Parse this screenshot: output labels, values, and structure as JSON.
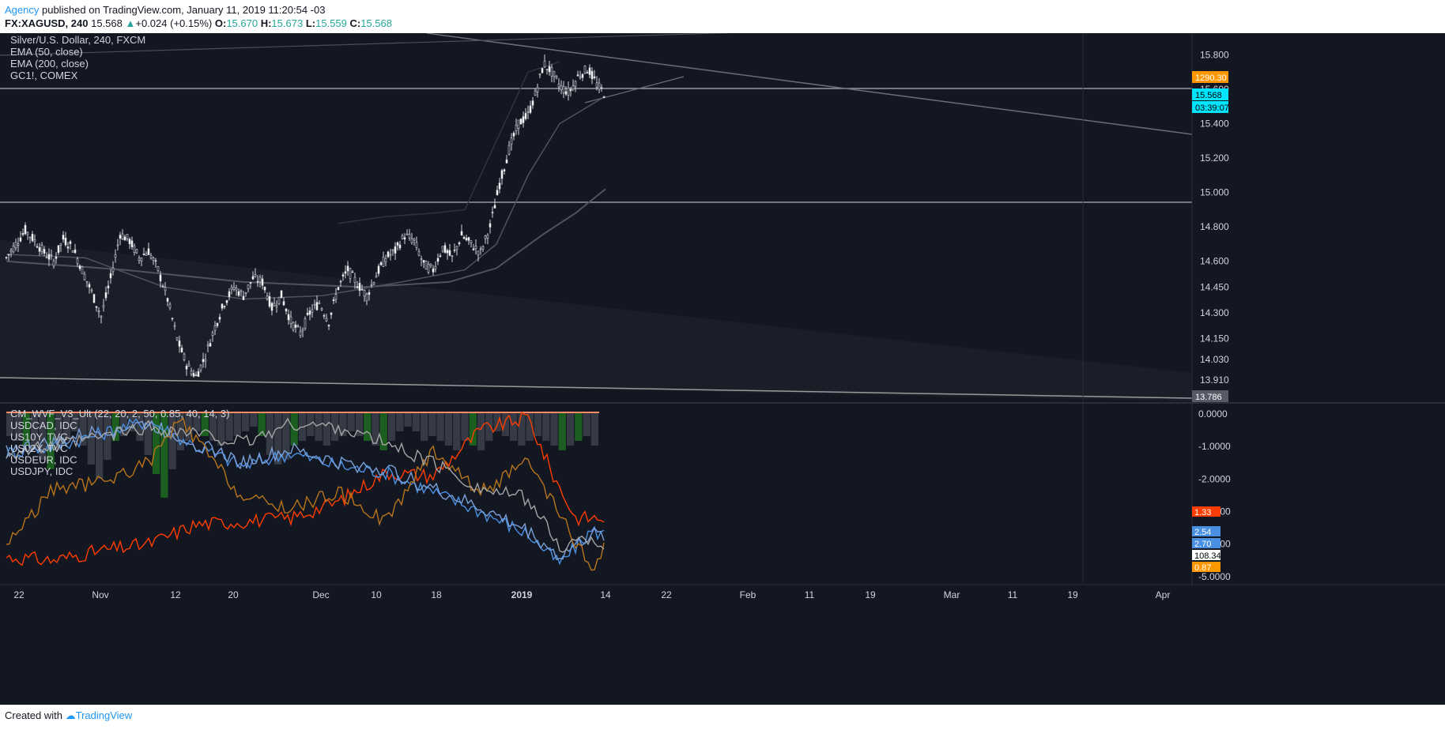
{
  "header": {
    "author": "Agency",
    "published_text": " published on TradingView.com, January 11, 2019 11:20:54 -03",
    "symbol": "FX:XAGUSD, 240",
    "last": "15.568",
    "change": "+0.024 (+0.15%)",
    "o_label": "O:",
    "o_value": "15.670",
    "h_label": "H:",
    "h_value": "15.673",
    "l_label": "L:",
    "l_value": "15.559",
    "c_label": "C:",
    "c_value": "15.568"
  },
  "footer": {
    "created_with": "Created with",
    "brand": "TradingView"
  },
  "colors": {
    "background": "#131722",
    "candle": "#d1d4dc",
    "accent_cyan": "#00e5ff",
    "orange": "#ff9800",
    "red_orange": "#ff3d00",
    "blue": "#4a90e2",
    "brown": "#b8741a",
    "grey_line": "#a5a5a5",
    "green_hist": "#1b5e20",
    "gray_hist": "#363a45"
  },
  "chart_data": [
    {
      "type": "candlestick",
      "title": "Silver/U.S. Dollar, 240, FXCM",
      "legend": [
        "EMA (50, close)",
        "EMA (200, close)",
        "GC1!, COMEX"
      ],
      "y_ticks": [
        "15.800",
        "15.600",
        "15.400",
        "15.200",
        "15.000",
        "14.800",
        "14.600",
        "14.450",
        "14.300",
        "14.150",
        "14.030",
        "13.910"
      ],
      "ylim": [
        13.786,
        15.88
      ],
      "badges": [
        {
          "text": "1290.30",
          "color": "#ff9800"
        },
        {
          "text": "15.568",
          "color": "#00e5ff"
        },
        {
          "text": "03:39:07",
          "color": "#00e5ff"
        },
        {
          "text": "13.786",
          "color": "#555a66"
        }
      ],
      "series_points": [
        [
          0,
          14.62
        ],
        [
          12,
          14.7
        ],
        [
          24,
          14.78
        ],
        [
          36,
          14.72
        ],
        [
          48,
          14.65
        ],
        [
          60,
          14.6
        ],
        [
          72,
          14.73
        ],
        [
          84,
          14.68
        ],
        [
          96,
          14.55
        ],
        [
          108,
          14.42
        ],
        [
          120,
          14.28
        ],
        [
          132,
          14.5
        ],
        [
          144,
          14.76
        ],
        [
          156,
          14.72
        ],
        [
          168,
          14.62
        ],
        [
          180,
          14.66
        ],
        [
          192,
          14.55
        ],
        [
          204,
          14.38
        ],
        [
          216,
          14.15
        ],
        [
          228,
          14.0
        ],
        [
          240,
          13.93
        ],
        [
          252,
          14.05
        ],
        [
          264,
          14.22
        ],
        [
          276,
          14.36
        ],
        [
          288,
          14.45
        ],
        [
          300,
          14.4
        ],
        [
          312,
          14.5
        ],
        [
          324,
          14.48
        ],
        [
          336,
          14.33
        ],
        [
          348,
          14.4
        ],
        [
          360,
          14.25
        ],
        [
          372,
          14.18
        ],
        [
          384,
          14.3
        ],
        [
          396,
          14.36
        ],
        [
          408,
          14.25
        ],
        [
          420,
          14.45
        ],
        [
          432,
          14.55
        ],
        [
          444,
          14.47
        ],
        [
          456,
          14.4
        ],
        [
          468,
          14.52
        ],
        [
          480,
          14.62
        ],
        [
          492,
          14.66
        ],
        [
          504,
          14.75
        ],
        [
          516,
          14.72
        ],
        [
          528,
          14.58
        ],
        [
          540,
          14.55
        ],
        [
          552,
          14.68
        ],
        [
          564,
          14.62
        ],
        [
          576,
          14.75
        ],
        [
          588,
          14.7
        ],
        [
          600,
          14.65
        ],
        [
          612,
          14.8
        ],
        [
          624,
          15.05
        ],
        [
          636,
          15.25
        ],
        [
          648,
          15.4
        ],
        [
          660,
          15.45
        ],
        [
          670,
          15.58
        ],
        [
          680,
          15.75
        ],
        [
          690,
          15.7
        ],
        [
          700,
          15.62
        ],
        [
          712,
          15.58
        ],
        [
          724,
          15.68
        ],
        [
          736,
          15.72
        ],
        [
          748,
          15.62
        ],
        [
          758,
          15.568
        ]
      ],
      "ema50_points": [
        [
          0,
          14.64
        ],
        [
          100,
          14.62
        ],
        [
          200,
          14.45
        ],
        [
          300,
          14.38
        ],
        [
          400,
          14.4
        ],
        [
          500,
          14.48
        ],
        [
          580,
          14.55
        ],
        [
          620,
          14.7
        ],
        [
          660,
          15.1
        ],
        [
          700,
          15.4
        ],
        [
          758,
          15.56
        ]
      ],
      "ema200_points": [
        [
          0,
          14.6
        ],
        [
          150,
          14.55
        ],
        [
          300,
          14.48
        ],
        [
          450,
          14.45
        ],
        [
          560,
          14.48
        ],
        [
          620,
          14.56
        ],
        [
          680,
          14.76
        ],
        [
          720,
          14.88
        ],
        [
          758,
          15.02
        ]
      ],
      "gc_points": [
        [
          420,
          14.82
        ],
        [
          480,
          14.86
        ],
        [
          540,
          14.88
        ],
        [
          580,
          14.9
        ],
        [
          620,
          15.3
        ],
        [
          660,
          15.7
        ],
        [
          700,
          15.76
        ]
      ]
    },
    {
      "type": "line",
      "title": "CM_WVF_V3_Ult (22, 20, 2, 50, 0.85, 40, 14, 3)",
      "legend": [
        "USDCAD, IDC",
        "US10Y, TVC",
        "US02Y, TVC",
        "USDEUR, IDC",
        "USDJPY, IDC"
      ],
      "y_ticks": [
        "0.0000",
        "-1.0000",
        "-2.0000",
        "-3.0000",
        "-4.0000",
        "-5.0000"
      ],
      "ylim": [
        -5.2,
        0.1
      ],
      "badges": [
        {
          "text": "1.33",
          "color": "#ff3d00"
        },
        {
          "text": "2.54",
          "color": "#4a90e2"
        },
        {
          "text": "2.70",
          "color": "#4a90e2"
        },
        {
          "text": "108.34",
          "color": "#ffffff"
        },
        {
          "text": "0.87",
          "color": "#ff9800"
        }
      ],
      "series": [
        {
          "name": "USDCAD, IDC",
          "color": "#ff3d00",
          "points": [
            [
              0,
              -4.4
            ],
            [
              60,
              -4.5
            ],
            [
              120,
              -4.2
            ],
            [
              180,
              -4.0
            ],
            [
              240,
              -3.4
            ],
            [
              300,
              -3.3
            ],
            [
              360,
              -3.2
            ],
            [
              420,
              -2.7
            ],
            [
              480,
              -1.8
            ],
            [
              540,
              -1.9
            ],
            [
              600,
              -0.5
            ],
            [
              660,
              -0.1
            ],
            [
              690,
              -1.8
            ],
            [
              720,
              -3.2
            ],
            [
              758,
              -3.2
            ]
          ]
        },
        {
          "name": "US10Y, TVC",
          "color": "#4a90e2",
          "points": [
            [
              0,
              -1.2
            ],
            [
              60,
              -1.0
            ],
            [
              120,
              -0.6
            ],
            [
              180,
              -0.2
            ],
            [
              240,
              -1.0
            ],
            [
              300,
              -1.6
            ],
            [
              360,
              -1.2
            ],
            [
              420,
              -1.6
            ],
            [
              480,
              -1.8
            ],
            [
              540,
              -2.4
            ],
            [
              600,
              -3.0
            ],
            [
              660,
              -3.7
            ],
            [
              700,
              -4.6
            ],
            [
              740,
              -3.6
            ],
            [
              758,
              -3.7
            ]
          ]
        },
        {
          "name": "US02Y, TVC",
          "color": "#7a9fd8",
          "points": [
            [
              0,
              -1.1
            ],
            [
              60,
              -0.9
            ],
            [
              120,
              -0.5
            ],
            [
              180,
              -0.3
            ],
            [
              240,
              -0.9
            ],
            [
              300,
              -1.5
            ],
            [
              360,
              -1.1
            ],
            [
              420,
              -1.5
            ],
            [
              480,
              -1.7
            ],
            [
              540,
              -2.3
            ],
            [
              600,
              -2.9
            ],
            [
              660,
              -3.6
            ],
            [
              700,
              -4.4
            ],
            [
              740,
              -3.7
            ],
            [
              758,
              -3.8
            ]
          ]
        },
        {
          "name": "USDEUR, IDC",
          "color": "#b8741a",
          "points": [
            [
              0,
              -4.0
            ],
            [
              60,
              -2.3
            ],
            [
              120,
              -2.1
            ],
            [
              180,
              -1.5
            ],
            [
              220,
              -0.2
            ],
            [
              260,
              -1.4
            ],
            [
              300,
              -2.6
            ],
            [
              360,
              -2.9
            ],
            [
              420,
              -2.4
            ],
            [
              480,
              -3.3
            ],
            [
              540,
              -1.1
            ],
            [
              600,
              -2.4
            ],
            [
              660,
              -1.5
            ],
            [
              700,
              -3.1
            ],
            [
              740,
              -4.8
            ],
            [
              758,
              -4.0
            ]
          ]
        },
        {
          "name": "USDJPY, IDC",
          "color": "#a5a5a5",
          "points": [
            [
              0,
              -1.2
            ],
            [
              60,
              -1.0
            ],
            [
              120,
              -0.7
            ],
            [
              180,
              -0.4
            ],
            [
              240,
              -0.6
            ],
            [
              300,
              -0.9
            ],
            [
              360,
              -0.3
            ],
            [
              420,
              -0.4
            ],
            [
              480,
              -0.9
            ],
            [
              540,
              -1.5
            ],
            [
              600,
              -2.3
            ],
            [
              660,
              -2.6
            ],
            [
              700,
              -4.1
            ],
            [
              740,
              -3.8
            ],
            [
              758,
              -4.1
            ]
          ]
        }
      ],
      "histogram_heights": [
        0.25,
        0.3,
        0.35,
        0.4,
        0.5,
        0.6,
        0.4,
        0.3,
        0.2,
        0.35,
        0.55,
        0.7,
        0.5,
        0.3,
        0.25,
        0.2,
        0.3,
        0.45,
        0.65,
        0.9,
        0.6,
        0.4,
        0.3,
        0.2,
        0.25,
        0.3,
        0.35,
        0.3,
        0.25,
        0.2,
        0.15,
        0.25,
        0.45,
        0.55,
        0.5,
        0.35,
        0.3,
        0.25,
        0.3,
        0.35,
        0.3,
        0.25,
        0.2,
        0.25,
        0.3,
        0.35,
        0.4,
        0.3,
        0.2,
        0.15,
        0.2,
        0.3,
        0.25,
        0.3,
        0.35,
        0.4,
        0.3,
        0.35,
        0.4,
        0.3,
        0.2,
        0.25,
        0.3,
        0.35,
        0.3,
        0.25,
        0.3,
        0.35,
        0.4,
        0.35,
        0.3,
        0.25,
        0.35
      ]
    },
    {
      "type": "time_axis",
      "x_ticks": [
        "22",
        "Nov",
        "12",
        "20",
        "Dec",
        "10",
        "18",
        "2019",
        "14",
        "22",
        "Feb",
        "11",
        "19",
        "Mar",
        "11",
        "19",
        "Apr"
      ]
    }
  ]
}
